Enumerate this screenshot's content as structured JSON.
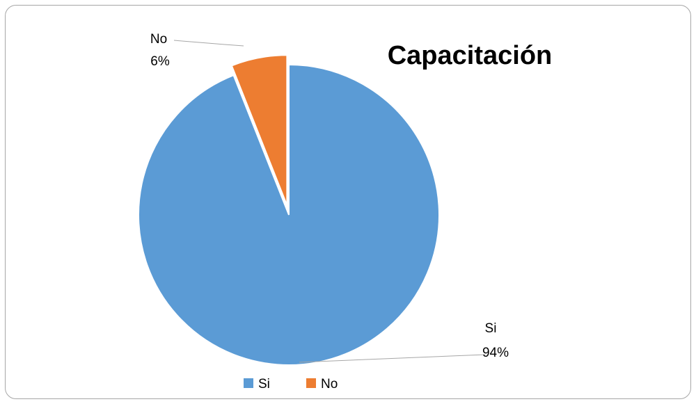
{
  "chart_data": {
    "type": "pie",
    "title": "Capacitación",
    "categories": [
      "Si",
      "No"
    ],
    "values": [
      94,
      6
    ],
    "value_labels": [
      "94%",
      "6%"
    ],
    "colors": [
      "#5b9bd5",
      "#ed7d31"
    ],
    "exploded": "No",
    "legend": {
      "position": "bottom",
      "entries": [
        "Si",
        "No"
      ]
    }
  }
}
